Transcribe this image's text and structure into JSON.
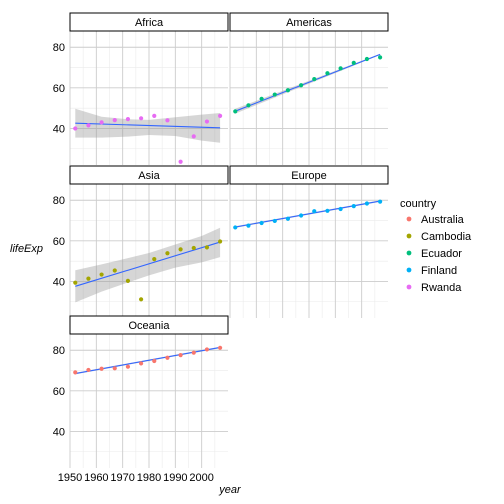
{
  "chart_data": {
    "type": "scatter",
    "facet_by": "continent",
    "xlabel": "year",
    "ylabel": "lifeExp",
    "xlim": [
      1950,
      2010
    ],
    "ylim": [
      22,
      88
    ],
    "x_ticks": [
      1950,
      1960,
      1970,
      1980,
      1990,
      2000
    ],
    "y_ticks": [
      40,
      60,
      80
    ],
    "grid": true,
    "legend": {
      "title": "country",
      "position": "right",
      "entries": [
        {
          "name": "Australia",
          "color": "#F8766D"
        },
        {
          "name": "Cambodia",
          "color": "#A3A500"
        },
        {
          "name": "Ecuador",
          "color": "#00BF7D"
        },
        {
          "name": "Finland",
          "color": "#00B0F6"
        },
        {
          "name": "Rwanda",
          "color": "#E76BF3"
        }
      ]
    },
    "years": [
      1952,
      1957,
      1962,
      1967,
      1972,
      1977,
      1982,
      1987,
      1992,
      1997,
      2002,
      2007
    ],
    "smooth_color": "#3366FF",
    "band_color": "#999999",
    "panels": [
      {
        "strip": "Africa",
        "country": "Rwanda",
        "values": [
          40.0,
          41.5,
          43.0,
          44.1,
          44.6,
          45.0,
          46.2,
          44.0,
          23.6,
          36.1,
          43.4,
          46.2
        ],
        "fit": [
          42.6,
          40.3
        ],
        "band": [
          [
            35.5,
            49.7
          ],
          [
            35.5,
            45.8
          ],
          [
            36.0,
            44.5
          ],
          [
            36.8,
            44.2
          ],
          [
            36.3,
            45.5
          ],
          [
            34.0,
            46.8
          ],
          [
            33.0,
            47.6
          ]
        ],
        "band_years": [
          1952,
          1962,
          1972,
          1980,
          1990,
          2000,
          2007
        ]
      },
      {
        "strip": "Americas",
        "country": "Ecuador",
        "values": [
          48.4,
          51.4,
          54.6,
          56.7,
          58.8,
          61.3,
          64.3,
          67.2,
          69.6,
          72.3,
          74.2,
          75.0
        ],
        "fit": [
          48.5,
          76.5
        ],
        "band": [
          [
            47.3,
            49.7
          ],
          [
            76.2,
            76.8
          ]
        ],
        "band_years": [
          1952,
          2007
        ]
      },
      {
        "strip": "Asia",
        "country": "Cambodia",
        "values": [
          39.4,
          41.4,
          43.4,
          45.4,
          40.3,
          31.2,
          51.0,
          53.9,
          55.8,
          56.5,
          56.8,
          59.7
        ],
        "fit": [
          37.6,
          59.4
        ],
        "band": [
          [
            29.7,
            45.5
          ],
          [
            35.0,
            48.4
          ],
          [
            39.5,
            51.5
          ],
          [
            43.0,
            54.0
          ],
          [
            46.8,
            58.2
          ],
          [
            49.4,
            62.4
          ],
          [
            52.0,
            66.5
          ]
        ],
        "band_years": [
          1952,
          1962,
          1972,
          1980,
          1990,
          2000,
          2007
        ]
      },
      {
        "strip": "Europe",
        "country": "Finland",
        "values": [
          66.6,
          67.5,
          68.8,
          69.8,
          70.9,
          72.5,
          74.6,
          74.8,
          75.7,
          77.1,
          78.4,
          79.3
        ],
        "fit": [
          66.8,
          79.6
        ],
        "band": [
          [
            66.4,
            67.2
          ],
          [
            79.2,
            80.0
          ]
        ],
        "band_years": [
          1952,
          2007
        ]
      },
      {
        "strip": "Oceania",
        "country": "Australia",
        "values": [
          69.1,
          70.3,
          70.9,
          71.1,
          71.9,
          73.5,
          74.7,
          76.3,
          77.6,
          78.8,
          80.4,
          81.2
        ],
        "fit": [
          68.5,
          81.4
        ],
        "band": [
          [
            68.1,
            68.9
          ],
          [
            81.0,
            81.8
          ]
        ],
        "band_years": [
          1952,
          2007
        ]
      }
    ]
  }
}
